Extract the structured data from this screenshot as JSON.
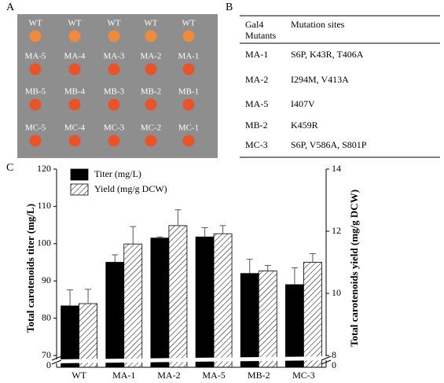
{
  "panels": [
    "A",
    "B",
    "C"
  ],
  "plate": {
    "rows": [
      [
        "WT",
        "WT",
        "WT",
        "WT",
        "WT"
      ],
      [
        "MA-5",
        "MA-4",
        "MA-3",
        "MA-2",
        "MA-1"
      ],
      [
        "MB-5",
        "MB-4",
        "MB-3",
        "MB-2",
        "MB-1"
      ],
      [
        "MC-5",
        "MC-4",
        "MC-3",
        "MC-2",
        "MC-1"
      ]
    ]
  },
  "table": {
    "header": {
      "mutants": [
        "Gal4",
        "Mutants"
      ],
      "sites": "Mutation sites"
    },
    "rows": [
      [
        "MA-1",
        "S6P, K43R, T406A"
      ],
      [
        "MA-2",
        "I294M, V413A"
      ],
      [
        "MA-5",
        "I407V"
      ],
      [
        "MB-2",
        "K459R"
      ],
      [
        "MC-3",
        "S6P, V586A, S801P"
      ]
    ]
  },
  "chart_data": {
    "type": "bar",
    "categories": [
      "WT",
      "MA-1",
      "MA-2",
      "MA-5",
      "MB-2",
      "MC-3"
    ],
    "y_label": "Total carotenoids titer (mg/L)",
    "y2_label": "Total carotenoids yield (mg/g DCW)",
    "series": [
      {
        "name": "Titer (mg/L)",
        "color": "#000000",
        "values": [
          83.3,
          95,
          101.5,
          101.8,
          92,
          89
        ],
        "errors": [
          4.3,
          2,
          0.3,
          2.5,
          3.8,
          4.5
        ]
      },
      {
        "name": "Yield (mg/g DCW)",
        "color": "#ffffff",
        "hatch": true,
        "axis": "y2",
        "values": [
          9.67,
          11.59,
          12.18,
          11.92,
          10.72,
          11.0
        ],
        "errors": [
          0.46,
          0.56,
          0.51,
          0.26,
          0.18,
          0.28
        ]
      }
    ],
    "ylim": [
      70,
      120
    ],
    "yticks": [
      70,
      80,
      90,
      100,
      110,
      120
    ],
    "y2lim": [
      8,
      14
    ],
    "y2ticks": [
      8,
      10,
      12,
      14
    ],
    "y_break_tick": 0,
    "y2_break_tick": 0,
    "legend": "top-left"
  }
}
